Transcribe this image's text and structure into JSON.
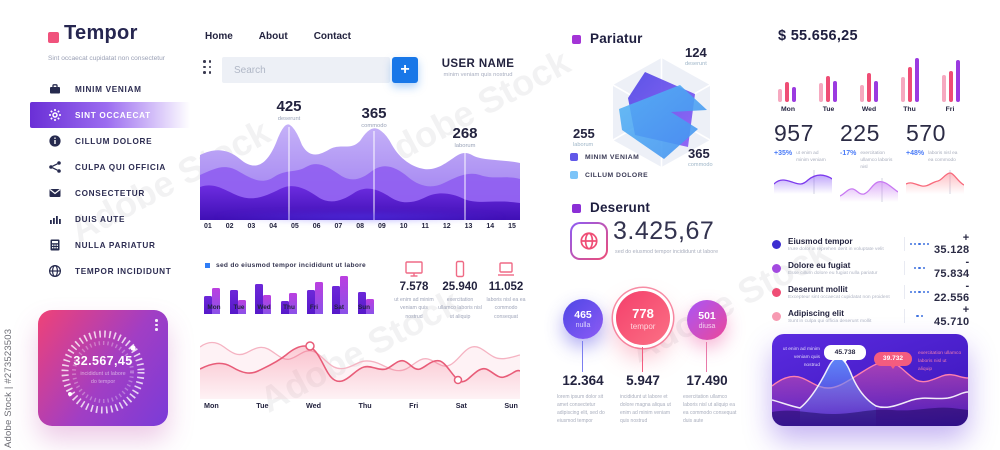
{
  "watermark": {
    "label": "Adobe Stock | #273523503",
    "diagonal": "Adobe Stock"
  },
  "colors": {
    "accent_purple": "#7b2ff7",
    "pink": "#ef4d75",
    "blue": "#1877e8",
    "violet_bar": "#6d28d9",
    "magenta_bar": "#a855f7"
  },
  "sidebar": {
    "brand": {
      "title": "Tempor",
      "subtitle": "Sint occaecat cupidatat non consectetur"
    },
    "items": [
      {
        "label": "MINIM VENIAM",
        "icon": "briefcase",
        "active": false
      },
      {
        "label": "SINT OCCAECAT",
        "icon": "gear",
        "active": true
      },
      {
        "label": "CILLUM DOLORE",
        "icon": "info",
        "active": false
      },
      {
        "label": "CULPA QUI OFFICIA",
        "icon": "share",
        "active": false
      },
      {
        "label": "CONSECTETUR",
        "icon": "mail",
        "active": false
      },
      {
        "label": "DUIS AUTE",
        "icon": "bar-chart",
        "active": false
      },
      {
        "label": "NULLA PARIATUR",
        "icon": "calculator",
        "active": false
      },
      {
        "label": "TEMPOR INCIDIDUNT",
        "icon": "globe",
        "active": false
      }
    ],
    "gauge_card": {
      "value": "32.567,45",
      "subtitle": "incididunt ut labore\ndo tempor"
    }
  },
  "topbar": {
    "nav": [
      "Home",
      "About",
      "Contact"
    ],
    "search_placeholder": "Search",
    "add_button": "+",
    "user": {
      "name": "USER NAME",
      "subtitle": "minim veniam quis nostrud"
    }
  },
  "main_chart": {
    "annotations": [
      {
        "value": "425",
        "label": "deserunt"
      },
      {
        "value": "365",
        "label": "commodo"
      },
      {
        "value": "268",
        "label": "laborum"
      }
    ],
    "x_labels": [
      "01",
      "02",
      "03",
      "04",
      "05",
      "06",
      "07",
      "08",
      "09",
      "10",
      "11",
      "12",
      "13",
      "14",
      "15"
    ]
  },
  "weekly_bars": {
    "header": "sed do eiusmod tempor incididunt ut labore",
    "categories": [
      "Mon",
      "Tue",
      "Wed",
      "Thu",
      "Fri",
      "Sat",
      "Sun"
    ],
    "series": [
      {
        "name": "violet",
        "values": [
          18,
          24,
          30,
          13,
          24,
          28,
          22
        ]
      },
      {
        "name": "magenta",
        "values": [
          26,
          14,
          19,
          21,
          32,
          38,
          15
        ]
      }
    ]
  },
  "device_stats": [
    {
      "icon": "monitor",
      "value": "7.578",
      "caption": "ut enim ad minim veniam quis nostrud"
    },
    {
      "icon": "tablet",
      "value": "25.940",
      "caption": "exercitation ullamco laboris nisl ut aliquip"
    },
    {
      "icon": "laptop",
      "value": "11.052",
      "caption": "laboris nisl ea ea commodo consequat"
    }
  ],
  "line_chart": {
    "x_labels": [
      "Mon",
      "Tue",
      "Wed",
      "Thu",
      "Fri",
      "Sat",
      "Sun"
    ]
  },
  "pariatur": {
    "title": "Pariatur",
    "axis_values": [
      {
        "value": "124",
        "label": "deserunt"
      },
      {
        "value": "255",
        "label": "laborum"
      },
      {
        "value": "365",
        "label": "commodo"
      }
    ],
    "legend": [
      {
        "label": "MINIM VENIAM",
        "color": "#6158e8"
      },
      {
        "label": "CILLUM DOLORE",
        "color": "#7cc4f8"
      }
    ]
  },
  "deserunt": {
    "title": "Deserunt",
    "value": "3.425,67",
    "caption": "sed do eiusmod tempor incididunt ut labore",
    "bubbles": [
      {
        "value": "465",
        "label": "nulla",
        "amount": "12.364",
        "caption": "lorem ipsum dolor sit amet consectetur adipiscing elit, sed do eiusmod tempor"
      },
      {
        "value": "778",
        "label": "tempor",
        "amount": "5.947",
        "caption": "incididunt ut labore et dolore magna aliqua ut enim ad minim veniam quis nostrud"
      },
      {
        "value": "501",
        "label": "diusa",
        "amount": "17.490",
        "caption": "exercitation ullamco laboris nisl ut aliquip ea ea commodo consequat duis aute"
      }
    ]
  },
  "right": {
    "total": "$ 55.656,25",
    "bar_categories": [
      "Mon",
      "Tue",
      "Wed",
      "Thu",
      "Fri"
    ],
    "bar_values": [
      [
        13,
        20,
        15
      ],
      [
        19,
        26,
        21
      ],
      [
        17,
        29,
        21
      ],
      [
        25,
        35,
        44
      ],
      [
        27,
        31,
        42
      ]
    ],
    "stats": [
      {
        "value": "957",
        "delta": "+35%",
        "caption": "ut enim ad minim veniam"
      },
      {
        "value": "225",
        "delta": "-17%",
        "caption": "exercitation ullamco laboris nisl"
      },
      {
        "value": "570",
        "delta": "+48%",
        "caption": "laboris nisl ea ea commodo"
      }
    ],
    "transactions": [
      {
        "title": "Eiusmod tempor",
        "subtitle": "Irure dolor in reprehen derit in voluptate velit",
        "dots": 5,
        "amount": "+ 35.128",
        "dot_color": "#3d2ed0"
      },
      {
        "title": "Dolore eu fugiat",
        "subtitle": "Esse cillum dolore eu fugiat nulla pariatur",
        "dots": 3,
        "amount": "- 75.834",
        "dot_color": "#a34ae0"
      },
      {
        "title": "Deserunt mollit",
        "subtitle": "Excepteur sint occaecat cupidatat non proident",
        "dots": 5,
        "amount": "- 22.556",
        "dot_color": "#ef4d75"
      },
      {
        "title": "Adipiscing elit",
        "subtitle": "Sunt in culpa qui officia deserunt mollit",
        "dots": 2,
        "amount": "+ 45.710",
        "dot_color": "#f79ab2"
      }
    ],
    "wave_card": {
      "tooltip_white": "45.738",
      "tooltip_pink": "39.732",
      "left_caption": "ut enim ad minim veniam quis nostrud",
      "right_caption": "exercitation ullamco laboris nisl ut aliquip"
    }
  }
}
